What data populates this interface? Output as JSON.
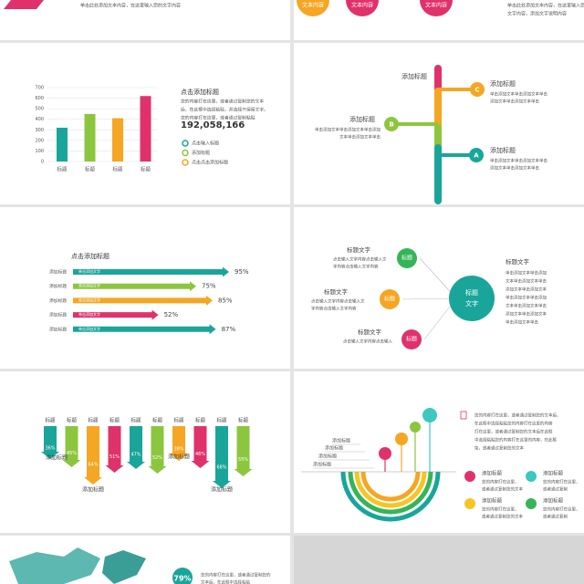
{
  "top": {
    "text": "单击此处添加文本内容，在这里输入您的文字内容",
    "badges": [
      "文本内容",
      "文本内容",
      "文本内容"
    ],
    "note": [
      "单击此处添加文本内容，在这里输入您的",
      "文字内容，添加文字说明内容"
    ]
  },
  "bar_chart": {
    "type": "bar",
    "categories": [
      "标题",
      "标题",
      "标题",
      "标题"
    ],
    "values": [
      320,
      450,
      410,
      620
    ],
    "colors": [
      "#1aa59a",
      "#8cc63f",
      "#f5a623",
      "#e0326a"
    ],
    "ylim": [
      0,
      700
    ],
    "yticks": [
      0,
      100,
      200,
      300,
      400,
      500,
      600,
      700
    ],
    "grid": true
  },
  "bar_text": {
    "title": "点击添加标题",
    "body": [
      "您的内容打在这里，或者通过复制您的文本",
      "后，在此框中选择粘贴，并选择只保留文字。",
      "您的内容打在这里，或者通过复制粘贴"
    ],
    "number": "192,058,166",
    "legend": [
      {
        "text": "点击输入标题",
        "color": "#1aa59a"
      },
      {
        "text": "添加标题",
        "color": "#8cc63f"
      },
      {
        "text": "点击点击添加标题",
        "color": "#f5a623"
      }
    ]
  },
  "timeline": {
    "top": "添加标题",
    "items": [
      {
        "letter": "C",
        "title": "添加标题",
        "body": [
          "单击添加文本单击添加文本单击",
          "添加文本单击添加文本单击"
        ]
      },
      {
        "letter": "B",
        "title": "添加标题",
        "body": [
          "单击添加文本单击添加文本单击添加",
          "文本单击添加文本单击"
        ]
      },
      {
        "letter": "A",
        "title": "添加标题",
        "body": [
          "单击添加文本单击添加文本单击",
          "添加文本单击添加文本单击"
        ]
      }
    ]
  },
  "arrows": {
    "title": "点击添加标题",
    "rows": [
      {
        "label": "添加标题",
        "inner": "单击添加文字",
        "value": 95,
        "value_label": "95%",
        "color": "#1aa59a"
      },
      {
        "label": "添加标题",
        "inner": "单击添加文字",
        "value": 75,
        "value_label": "75%",
        "color": "#8cc63f"
      },
      {
        "label": "添加标题",
        "inner": "单击添加文字",
        "value": 85,
        "value_label": "85%",
        "color": "#f5a623"
      },
      {
        "label": "添加标题",
        "inner": "单击添加文字",
        "value": 52,
        "value_label": "52%",
        "color": "#e0326a"
      },
      {
        "label": "添加标题",
        "inner": "单击添加文字",
        "value": 87,
        "value_label": "87%",
        "color": "#1aa59a"
      }
    ]
  },
  "circles": {
    "center": [
      "标题",
      "文字"
    ],
    "nodes": [
      {
        "badge": "标题",
        "title": "标题文字",
        "color": "#35b558",
        "body": [
          "点击输入文字内容点击输入文",
          "字内容点击输入文字内容"
        ]
      },
      {
        "badge": "标题",
        "title": "标题文字",
        "color": "#f5a623",
        "body": [
          "点击输入文字内容点击输入文",
          "字内容点击输入文字内容"
        ]
      },
      {
        "badge": "标题",
        "title": "标题文字",
        "color": "#e0326a",
        "body": [
          "点击输入文字内容点击输入"
        ]
      }
    ],
    "side": {
      "title": "标题文字",
      "body": [
        "单击添加文本单击添加",
        "文本单击添加文本单击",
        "添加文本单击添加文本",
        "单击添加文本单击添加",
        "文本单击添加文本单击",
        "添加文本单击添加文本",
        "单击添加文本单击"
      ]
    }
  },
  "vbars": {
    "labels": [
      "标题",
      "标题",
      "标题",
      "标题",
      "标题",
      "标题",
      "标题",
      "标题",
      "标题",
      "标题"
    ],
    "values": [
      36,
      45,
      64,
      51,
      47,
      52,
      38,
      46,
      68,
      55
    ],
    "value_labels": [
      "36%",
      "45%",
      "64%",
      "51%",
      "47%",
      "52%",
      "38%",
      "46%",
      "68%",
      "55%"
    ],
    "colors": [
      "#1aa59a",
      "#8cc63f",
      "#f5a623",
      "#e0326a",
      "#1aa59a",
      "#8cc63f",
      "#f5a623",
      "#e0326a",
      "#1aa59a",
      "#8cc63f"
    ],
    "captions": [
      "添加标题",
      "添加标题",
      "添加标题",
      "添加标题"
    ]
  },
  "arcs": {
    "labels": [
      "添加标题",
      "添加标题",
      "添加标题",
      "添加标题"
    ],
    "intro": [
      "您的内容打在这里，或者通过复制您的文本后，",
      "在此框中选择粘贴您的内容打在这里的内容",
      "打在这里，或者通过复制您的文本后在此框",
      "中选择粘贴您的内容打在这里的内容，在此框",
      "架，或者通过复制您的文本"
    ],
    "legend": [
      {
        "title": "添加标题",
        "color": "#e0326a",
        "body": [
          "您的内容打在这里，",
          "或者通过复制您的文本"
        ]
      },
      {
        "title": "添加标题",
        "color": "#3cc8c0",
        "body": [
          "您的内容打在这里，",
          "或者通过复制"
        ]
      },
      {
        "title": "添加标题",
        "color": "#f5c623",
        "body": [
          "您的内容打在这里，",
          "或者通过复制您的文本"
        ]
      },
      {
        "title": "添加标题",
        "color": "#35b558",
        "body": [
          "您的内容打在这里，",
          "或者通过复制"
        ]
      }
    ]
  },
  "map": {
    "percent": "79%",
    "text": [
      "您的内容打在这里，或者通过复制您的",
      "文本后，在此框中选择粘贴"
    ]
  }
}
